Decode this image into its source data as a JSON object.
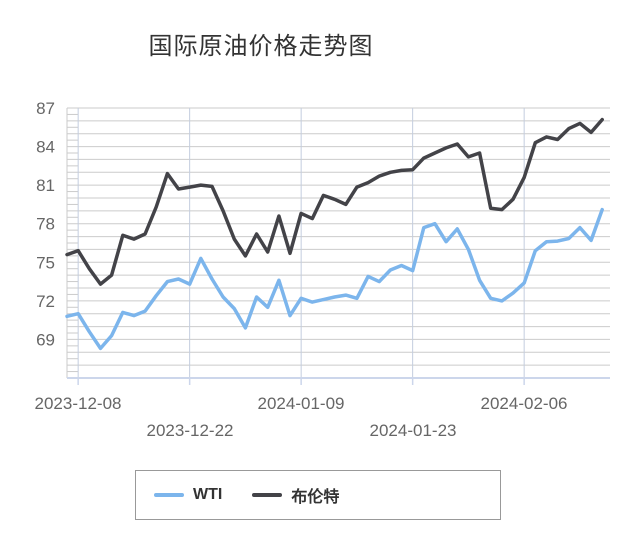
{
  "title": "国际原油价格走势图",
  "chart_data": {
    "type": "line",
    "title": "国际原油价格走势图",
    "xlabel": "",
    "ylabel": "",
    "grid": true,
    "legend_position": "bottom",
    "ylim": [
      66,
      87
    ],
    "y_major_tick_step": 3,
    "y_minor_tick_step": 1,
    "y_tick_labels": [
      "87",
      "84",
      "81",
      "78",
      "75",
      "72",
      "69"
    ],
    "n_points": 49,
    "x_tick_positions": [
      1,
      11,
      21,
      31,
      41
    ],
    "x_tick_labels": [
      "2023-12-08",
      "2023-12-22",
      "2024-01-09",
      "2024-01-23",
      "2024-02-06"
    ],
    "series": [
      {
        "name": "WTI",
        "color": "#7cb5ec",
        "values": [
          70.8,
          71.0,
          69.6,
          68.3,
          69.3,
          71.1,
          70.85,
          71.2,
          72.4,
          73.5,
          73.7,
          73.3,
          75.3,
          73.7,
          72.3,
          71.4,
          69.9,
          72.3,
          71.5,
          73.6,
          70.85,
          72.2,
          71.9,
          72.1,
          72.3,
          72.45,
          72.2,
          73.9,
          73.5,
          74.4,
          74.75,
          74.35,
          77.7,
          78.0,
          76.6,
          77.6,
          76.0,
          73.6,
          72.2,
          72.0,
          72.6,
          73.4,
          75.9,
          76.6,
          76.65,
          76.85,
          77.7,
          76.7,
          79.1
        ]
      },
      {
        "name": "布伦特",
        "color": "#434348",
        "values": [
          75.6,
          75.9,
          74.5,
          73.3,
          74.0,
          77.1,
          76.8,
          77.2,
          79.3,
          81.9,
          80.7,
          80.85,
          81.0,
          80.9,
          79.0,
          76.8,
          75.5,
          77.2,
          75.8,
          78.6,
          75.7,
          78.8,
          78.4,
          80.2,
          79.9,
          79.5,
          80.85,
          81.2,
          81.7,
          82.0,
          82.15,
          82.2,
          83.1,
          83.5,
          83.9,
          84.2,
          83.2,
          83.5,
          79.2,
          79.1,
          79.9,
          81.6,
          84.3,
          84.75,
          84.55,
          85.4,
          85.8,
          85.1,
          86.1
        ]
      }
    ],
    "colors": {
      "horizontal_grid": "#cbcbcb",
      "vertical_grid": "#c4cdde",
      "x_axis_line": "#ccd6eb",
      "axis_label": "#666666",
      "title_text": "#333333"
    }
  }
}
